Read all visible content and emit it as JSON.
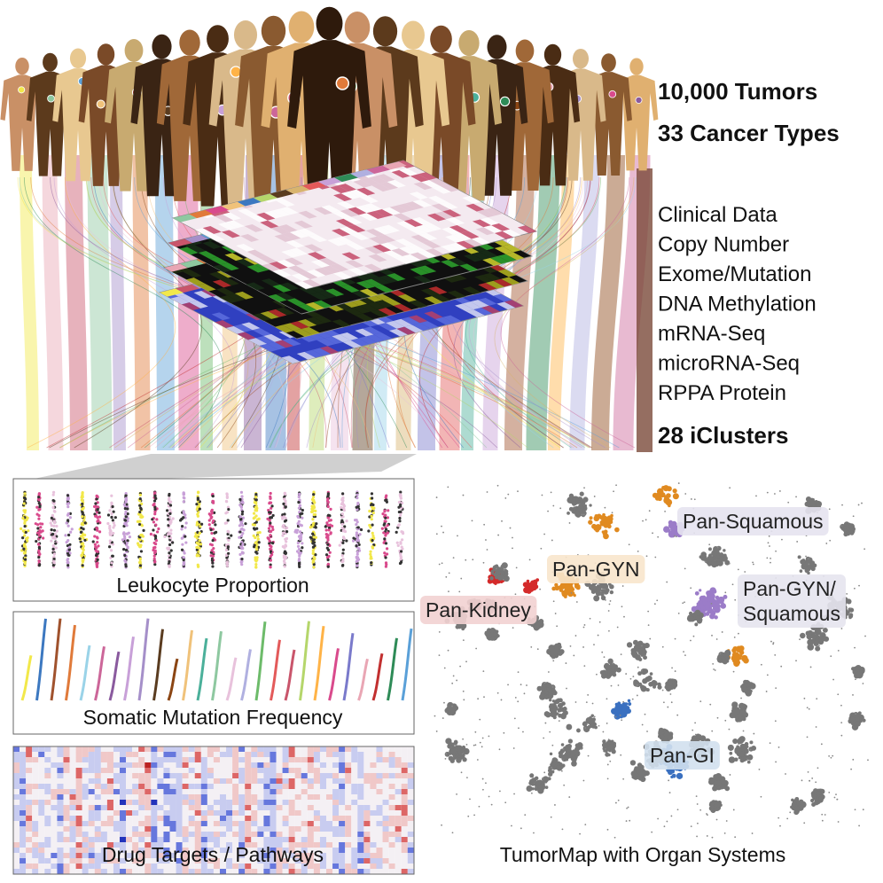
{
  "header": {
    "tumors": "10,000 Tumors",
    "cancer_types": "33 Cancer Types"
  },
  "data_types": [
    "Clinical Data",
    "Copy Number",
    "Exome/Mutation",
    "DNA Methylation",
    "mRNA-Seq",
    "microRNA-Seq",
    "RPPA Protein"
  ],
  "clusters": "28 iClusters",
  "panels": [
    {
      "label": "Leukocyte Proportion"
    },
    {
      "label": "Somatic Mutation Frequency"
    },
    {
      "label": "Drug Targets / Pathways"
    }
  ],
  "tumor_map": {
    "title": "TumorMap with Organ Systems",
    "regions": [
      {
        "lines": [
          "Pan-Squamous"
        ]
      },
      {
        "lines": [
          "Pan-GYN"
        ]
      },
      {
        "lines": [
          "Pan-GYN/",
          "Squamous"
        ]
      },
      {
        "lines": [
          "Pan-Kidney"
        ]
      },
      {
        "lines": [
          "Pan-GI"
        ]
      }
    ]
  }
}
